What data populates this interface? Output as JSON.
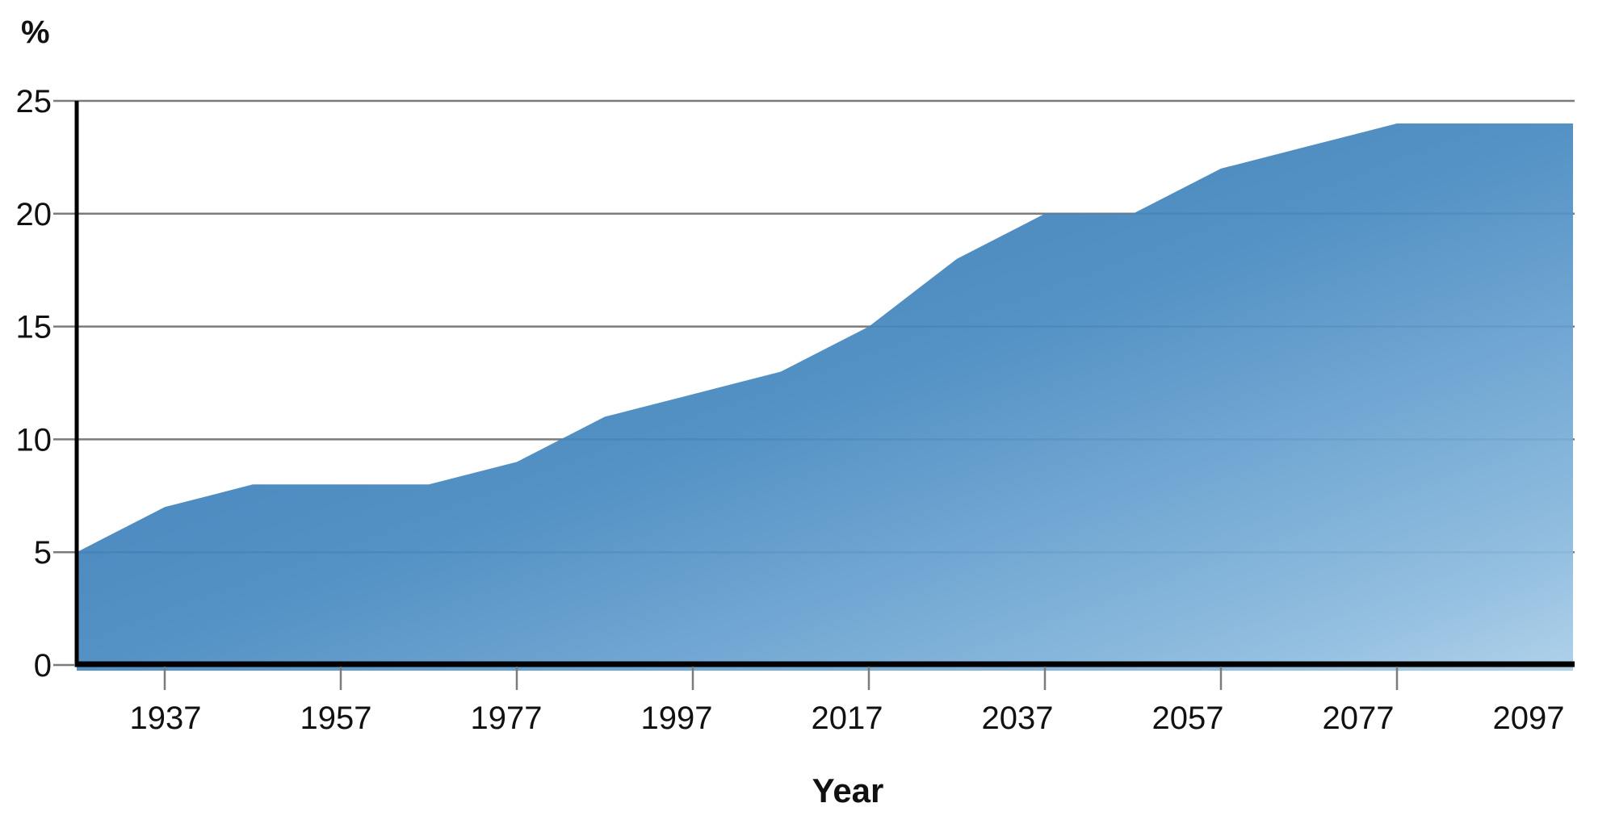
{
  "chart_data": {
    "type": "area",
    "title": "",
    "x": [
      1927,
      1937,
      1947,
      1957,
      1967,
      1977,
      1987,
      1997,
      2007,
      2017,
      2027,
      2037,
      2047,
      2057,
      2067,
      2077,
      2087,
      2097
    ],
    "values": [
      5,
      7,
      8,
      8,
      8,
      9,
      11,
      12,
      13,
      15,
      18,
      20,
      20,
      22,
      23,
      24,
      24,
      24
    ],
    "xlabel": "Year",
    "ylabel": "%",
    "xlim": [
      1927,
      2097
    ],
    "ylim": [
      0,
      25
    ],
    "grid": true,
    "legend": "none",
    "y_axis": {
      "unit": "%",
      "ticks": [
        0,
        5,
        10,
        15,
        20,
        25
      ],
      "tick_labels": [
        "0",
        "5",
        "10",
        "15",
        "20",
        "25"
      ]
    },
    "x_axis": {
      "title": "Year",
      "ticks": [
        {
          "year": 1937,
          "label": "1937",
          "mark": true
        },
        {
          "year": 1957,
          "label": "1957",
          "mark": true
        },
        {
          "year": 1977,
          "label": "1977",
          "mark": true
        },
        {
          "year": 1997,
          "label": "1997",
          "mark": true
        },
        {
          "year": 2017,
          "label": "2017",
          "mark": true
        },
        {
          "year": 2037,
          "label": "2037",
          "mark": true
        },
        {
          "year": 2057,
          "label": "2057",
          "mark": true
        },
        {
          "year": 2077,
          "label": "2077",
          "mark": true
        },
        {
          "year": 2097,
          "label": "2097",
          "mark": false
        }
      ]
    },
    "colors": {
      "text": "#111111",
      "gridline": "#7b7b7b",
      "axis": "#000000",
      "area_gradient_stops": [
        {
          "offset": "0%",
          "color": "#3173af"
        },
        {
          "offset": "30%",
          "color": "#3c7fb9"
        },
        {
          "offset": "50%",
          "color": "#4789c0"
        },
        {
          "offset": "70%",
          "color": "#68a2d0"
        },
        {
          "offset": "88%",
          "color": "#8ab9dd"
        },
        {
          "offset": "100%",
          "color": "#a9cee8"
        }
      ],
      "area_fill_opacity": 0.93
    }
  },
  "labels": {
    "y_unit": "%",
    "x_title": "Year"
  }
}
